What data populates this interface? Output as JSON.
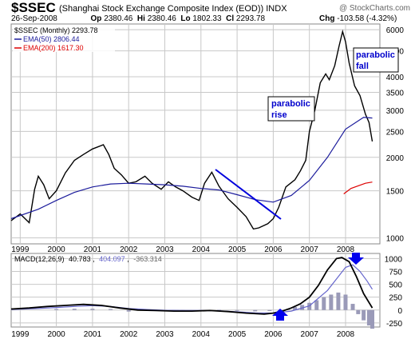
{
  "header": {
    "symbol": "$SSEC",
    "name": "(Shanghai Stock Exchange Composite Index (EOD))",
    "exchange": "INDX",
    "watermark": "@ StockCharts.com",
    "date": "26-Sep-2008",
    "open_label": "Op",
    "open": "2380.46",
    "high_label": "Hi",
    "high": "2380.46",
    "low_label": "Lo",
    "low": "1802.33",
    "close_label": "Cl",
    "close": "2293.78",
    "chg_label": "Chg",
    "chg": "-103.58 (-4.32%)"
  },
  "legend": {
    "price": "$SSEC (Monthly) 2293.78",
    "ema50": "EMA(50) 2806.44",
    "ema200": "EMA(200) 1617.30"
  },
  "macd_header": {
    "label": "MACD(12,26,9)",
    "macd": "40.783",
    "signal": "404.097",
    "hist": "-363.314"
  },
  "annotations": {
    "rise_line1": "parabolic",
    "rise_line2": "rise",
    "fall_line1": "parabolic",
    "fall_line2": "fall"
  },
  "colors": {
    "price": "#000000",
    "ema50": "#1c1c9c",
    "ema200": "#dd0000",
    "macd": "#000000",
    "signal": "#6666cc",
    "hist": "#9a9ab8",
    "annotation": "#0000cc",
    "grid": "#c8c8c8"
  },
  "chart_data": [
    {
      "type": "line",
      "title": "$SSEC (Monthly)",
      "y_scale": "log",
      "ylim": [
        950,
        6300
      ],
      "xlim": [
        1998.75,
        2008.95
      ],
      "x_ticks": [
        "1999",
        "2000",
        "2001",
        "2002",
        "2003",
        "2004",
        "2005",
        "2006",
        "2007",
        "2008"
      ],
      "y_ticks": [
        1000,
        1500,
        2000,
        2500,
        3000,
        3500,
        4000,
        5000,
        6000
      ],
      "grid": true,
      "legend_position": "top-left",
      "series": [
        {
          "name": "$SSEC (Monthly)",
          "x": [
            1998.75,
            1999.0,
            1999.25,
            1999.4,
            1999.5,
            1999.65,
            1999.8,
            2000.0,
            2000.25,
            2000.5,
            2000.75,
            2001.0,
            2001.3,
            2001.45,
            2001.6,
            2001.8,
            2002.0,
            2002.2,
            2002.45,
            2002.65,
            2002.9,
            2003.1,
            2003.3,
            2003.5,
            2003.75,
            2003.95,
            2004.1,
            2004.3,
            2004.5,
            2004.75,
            2005.0,
            2005.25,
            2005.45,
            2005.6,
            2005.85,
            2006.0,
            2006.15,
            2006.35,
            2006.6,
            2006.75,
            2006.9,
            2007.0,
            2007.15,
            2007.3,
            2007.45,
            2007.55,
            2007.7,
            2007.82,
            2007.92,
            2008.0,
            2008.1,
            2008.25,
            2008.4,
            2008.55,
            2008.65,
            2008.74
          ],
          "values": [
            1160,
            1230,
            1140,
            1520,
            1700,
            1580,
            1400,
            1500,
            1750,
            1950,
            2050,
            2150,
            2230,
            2050,
            1820,
            1720,
            1600,
            1620,
            1700,
            1600,
            1520,
            1620,
            1550,
            1500,
            1420,
            1380,
            1600,
            1760,
            1560,
            1400,
            1300,
            1200,
            1080,
            1090,
            1130,
            1180,
            1300,
            1550,
            1650,
            1780,
            1950,
            2500,
            3000,
            3800,
            4100,
            3900,
            4400,
            5200,
            5900,
            5400,
            4500,
            3700,
            3400,
            2900,
            2700,
            2294
          ]
        },
        {
          "name": "EMA(50)",
          "x": [
            1998.75,
            1999.5,
            2000.0,
            2000.5,
            2001.0,
            2001.5,
            2002.0,
            2002.5,
            2003.0,
            2003.5,
            2004.0,
            2004.5,
            2005.0,
            2005.5,
            2006.0,
            2006.5,
            2007.0,
            2007.5,
            2008.0,
            2008.5,
            2008.74
          ],
          "values": [
            1180,
            1280,
            1380,
            1480,
            1550,
            1590,
            1600,
            1590,
            1580,
            1560,
            1530,
            1510,
            1450,
            1390,
            1360,
            1440,
            1640,
            2000,
            2550,
            2820,
            2806
          ]
        },
        {
          "name": "EMA(200)",
          "x": [
            2007.95,
            2008.15,
            2008.35,
            2008.55,
            2008.74
          ],
          "values": [
            1460,
            1530,
            1565,
            1600,
            1617
          ]
        }
      ]
    },
    {
      "type": "line",
      "title": "MACD(12,26,9)",
      "ylim": [
        -330,
        1100
      ],
      "xlim": [
        1998.75,
        2008.95
      ],
      "x_ticks": [
        "1999",
        "2000",
        "2001",
        "2002",
        "2003",
        "2004",
        "2005",
        "2006",
        "2007",
        "2008"
      ],
      "y_ticks": [
        -250,
        0,
        250,
        500,
        750,
        1000
      ],
      "grid": true,
      "series": [
        {
          "name": "MACD",
          "x": [
            1998.75,
            1999.25,
            1999.75,
            2000.25,
            2000.75,
            2001.25,
            2001.75,
            2002.25,
            2002.75,
            2003.25,
            2003.75,
            2004.25,
            2004.75,
            2005.25,
            2005.75,
            2006.0,
            2006.25,
            2006.5,
            2006.75,
            2007.0,
            2007.25,
            2007.5,
            2007.75,
            2007.9,
            2008.1,
            2008.3,
            2008.5,
            2008.74
          ],
          "values": [
            20,
            40,
            70,
            90,
            110,
            90,
            40,
            0,
            -10,
            -20,
            -20,
            -10,
            -30,
            -60,
            -80,
            -60,
            -20,
            40,
            120,
            250,
            480,
            780,
            1000,
            1020,
            940,
            650,
            320,
            41
          ]
        },
        {
          "name": "Signal",
          "x": [
            1998.75,
            1999.5,
            2000.0,
            2000.5,
            2001.0,
            2001.5,
            2002.0,
            2002.5,
            2003.0,
            2003.5,
            2004.0,
            2004.5,
            2005.0,
            2005.5,
            2006.0,
            2006.5,
            2007.0,
            2007.5,
            2007.8,
            2008.0,
            2008.2,
            2008.4,
            2008.6,
            2008.74
          ],
          "values": [
            10,
            30,
            50,
            70,
            85,
            70,
            30,
            10,
            -5,
            -10,
            -10,
            -15,
            -35,
            -55,
            -60,
            -20,
            80,
            380,
            650,
            830,
            880,
            750,
            560,
            404
          ]
        },
        {
          "name": "Histogram",
          "x": [
            2000.0,
            2000.5,
            2001.0,
            2001.5,
            2002.0,
            2002.5,
            2003.0,
            2003.5,
            2004.0,
            2004.5,
            2005.0,
            2005.5,
            2005.9,
            2006.2,
            2006.4,
            2006.6,
            2006.8,
            2007.0,
            2007.2,
            2007.4,
            2007.6,
            2007.8,
            2008.0,
            2008.2,
            2008.35,
            2008.5,
            2008.65,
            2008.74
          ],
          "values": [
            20,
            25,
            25,
            20,
            -30,
            -10,
            -5,
            -10,
            -10,
            5,
            -5,
            -25,
            -20,
            -40,
            20,
            60,
            100,
            140,
            190,
            250,
            300,
            340,
            300,
            120,
            -80,
            -200,
            -300,
            -363
          ]
        }
      ]
    }
  ]
}
